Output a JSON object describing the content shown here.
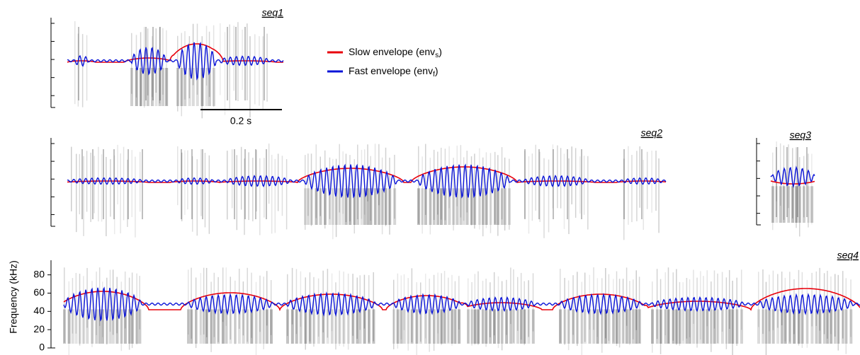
{
  "panels": [
    {
      "label": "seq1"
    },
    {
      "label": "seq2"
    },
    {
      "label": "seq3"
    },
    {
      "label": "seq4"
    }
  ],
  "legend": [
    {
      "text": "Slow envelope (env",
      "subscript": "s",
      "close": ")",
      "color": "#e8000b"
    },
    {
      "text": "Fast envelope (env",
      "subscript": "f",
      "close": ")",
      "color": "#0a14d8"
    }
  ],
  "scale_bar": {
    "label": "0.2 s"
  },
  "frequency_axis": {
    "label": "Frequency (kHz)",
    "ylim": [
      0,
      96
    ],
    "yticks": [
      0,
      20,
      40,
      60,
      80
    ]
  }
}
